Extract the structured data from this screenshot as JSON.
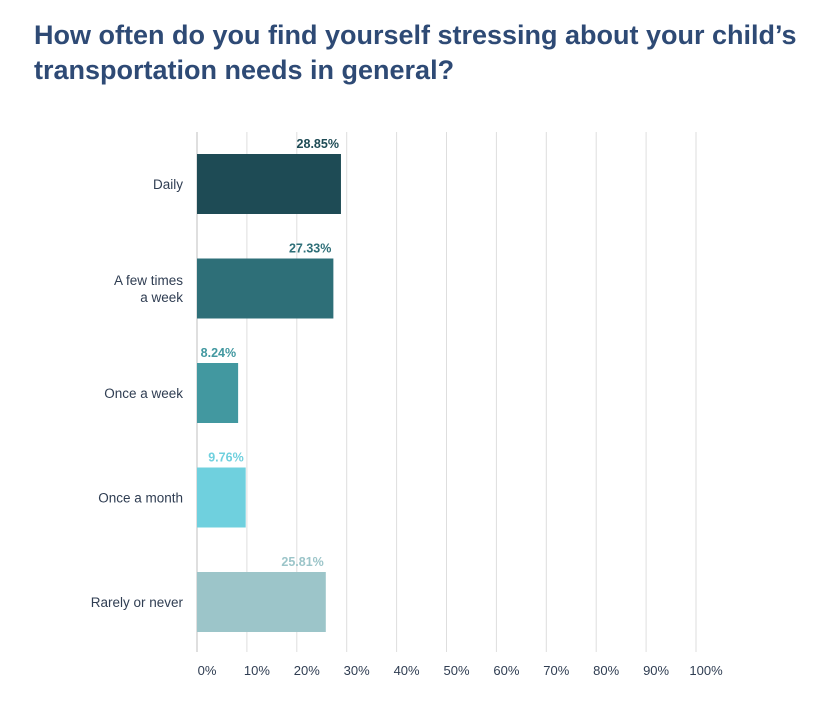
{
  "chart_data": {
    "type": "bar",
    "orientation": "horizontal",
    "title": "How often do you find yourself stressing about your child’s transportation needs in general?",
    "categories": [
      "Daily",
      "A few times a week",
      "Once a week",
      "Once a month",
      "Rarely or never"
    ],
    "category_lines": [
      [
        "Daily"
      ],
      [
        "A few times",
        "a week"
      ],
      [
        "Once a week"
      ],
      [
        "Once a month"
      ],
      [
        "Rarely or never"
      ]
    ],
    "values": [
      28.85,
      27.33,
      8.24,
      9.76,
      25.81
    ],
    "value_labels": [
      "28.85%",
      "27.33%",
      "8.24%",
      "9.76%",
      "25.81%"
    ],
    "colors": [
      "#1e4b55",
      "#2e6f78",
      "#4298a0",
      "#6fd0de",
      "#9cc5c9"
    ],
    "xlim": [
      0,
      100
    ],
    "xticks": [
      0,
      10,
      20,
      30,
      40,
      50,
      60,
      70,
      80,
      90,
      100
    ],
    "xtick_labels": [
      "0%",
      "10%",
      "20%",
      "30%",
      "40%",
      "50%",
      "60%",
      "70%",
      "80%",
      "90%",
      "100%"
    ],
    "grid": "vertical",
    "legend": "none"
  }
}
